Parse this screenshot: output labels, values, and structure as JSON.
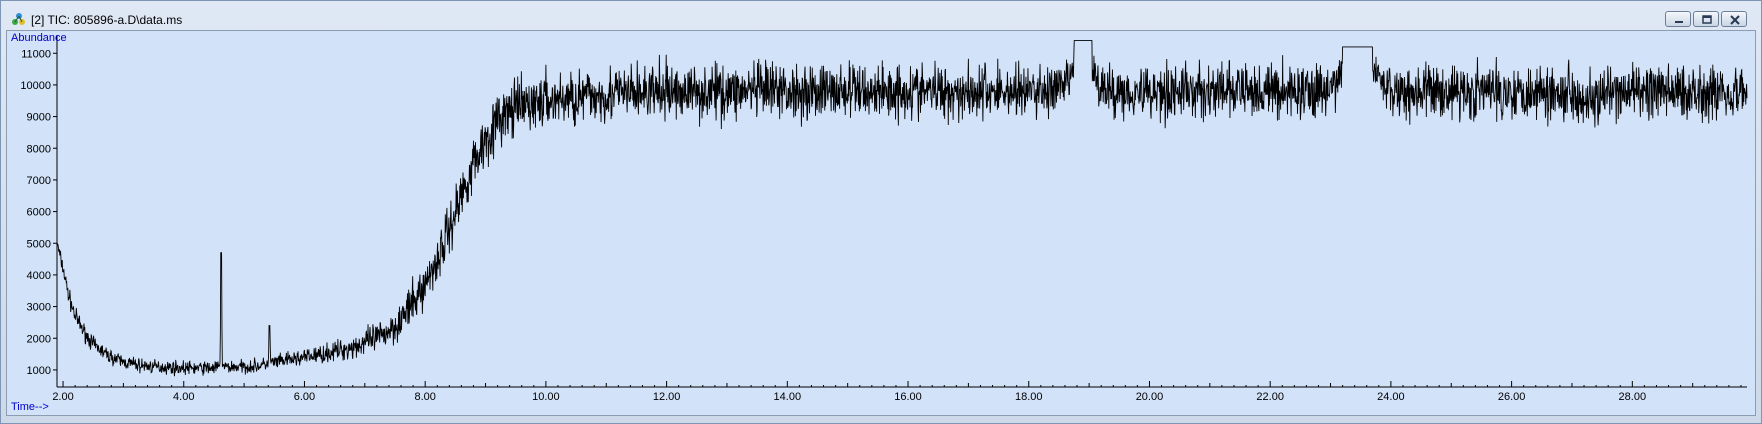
{
  "window": {
    "title": "[2] TIC: 805896-a.D\\data.ms",
    "icon": "app-molecule-icon",
    "buttons": [
      {
        "name": "minimize-button",
        "icon": "minimize-icon"
      },
      {
        "name": "restore-button",
        "icon": "restore-icon"
      },
      {
        "name": "close-button",
        "icon": "close-icon"
      }
    ]
  },
  "colors": {
    "plot_background": "#d2e2f8",
    "trace": "#000000",
    "axis_label": "#0000c8"
  },
  "chart_data": {
    "type": "line",
    "title": "",
    "ylabel": "Abundance",
    "xlabel": "Time-->",
    "xlim": [
      1.9,
      29.9
    ],
    "ylim": [
      650,
      11450
    ],
    "grid": false,
    "x_ticks": [
      "2.00",
      "4.00",
      "6.00",
      "8.00",
      "10.00",
      "12.00",
      "14.00",
      "16.00",
      "18.00",
      "20.00",
      "22.00",
      "24.00",
      "26.00",
      "28.00"
    ],
    "y_ticks": [
      "1000",
      "2000",
      "3000",
      "4000",
      "5000",
      "6000",
      "7000",
      "8000",
      "9000",
      "10000",
      "11000"
    ],
    "x_tick_values": [
      2,
      4,
      6,
      8,
      10,
      12,
      14,
      16,
      18,
      20,
      22,
      24,
      26,
      28
    ],
    "y_tick_values": [
      1000,
      2000,
      3000,
      4000,
      5000,
      6000,
      7000,
      8000,
      9000,
      10000,
      11000
    ],
    "series": [
      {
        "x": [
          1.9,
          2.0,
          2.1,
          2.2,
          2.35,
          2.5,
          2.75,
          3.0,
          3.25,
          3.5,
          3.75,
          4.0,
          4.25,
          4.5,
          4.6,
          4.62,
          4.64,
          4.75,
          5.0,
          5.25,
          5.4,
          5.42,
          5.44,
          5.5,
          5.75,
          6.0,
          6.25,
          6.5,
          6.75,
          7.0,
          7.25,
          7.5,
          7.75,
          8.0,
          8.25,
          8.5,
          8.75,
          9.0,
          9.25,
          9.5,
          9.75,
          10.0,
          10.5,
          11.0,
          11.5,
          12.0,
          13.0,
          14.0,
          15.0,
          16.0,
          17.0,
          18.0,
          18.6,
          18.9,
          19.2,
          20.0,
          21.0,
          22.0,
          23.0,
          23.4,
          24.0,
          25.0,
          26.0,
          27.0,
          27.3,
          28.0,
          29.0,
          29.9
        ],
        "y": [
          5000,
          4200,
          3300,
          2700,
          2200,
          1800,
          1450,
          1250,
          1150,
          1100,
          1080,
          1060,
          1060,
          1070,
          1080,
          4700,
          1100,
          1090,
          1100,
          1130,
          1200,
          2400,
          1250,
          1230,
          1320,
          1400,
          1480,
          1580,
          1700,
          1850,
          2050,
          2400,
          2950,
          3700,
          4700,
          6000,
          7300,
          8300,
          8950,
          9250,
          9400,
          9500,
          9600,
          9700,
          9750,
          9780,
          9800,
          9800,
          9800,
          9810,
          9800,
          9800,
          9850,
          11400,
          9800,
          9800,
          9800,
          9800,
          9800,
          11200,
          9800,
          9800,
          9800,
          9800,
          9500,
          9800,
          9800,
          9800
        ],
        "noise_amplitude": [
          150,
          180,
          190,
          190,
          180,
          170,
          160,
          160,
          160,
          150,
          150,
          150,
          150,
          150,
          150,
          0,
          150,
          150,
          150,
          150,
          150,
          0,
          150,
          160,
          170,
          180,
          200,
          220,
          260,
          300,
          350,
          400,
          450,
          500,
          550,
          600,
          620,
          620,
          620,
          620,
          620,
          620,
          620,
          620,
          620,
          620,
          620,
          620,
          620,
          620,
          620,
          620,
          620,
          0,
          620,
          620,
          620,
          620,
          620,
          0,
          620,
          620,
          620,
          620,
          620,
          620,
          620,
          620
        ]
      }
    ]
  }
}
